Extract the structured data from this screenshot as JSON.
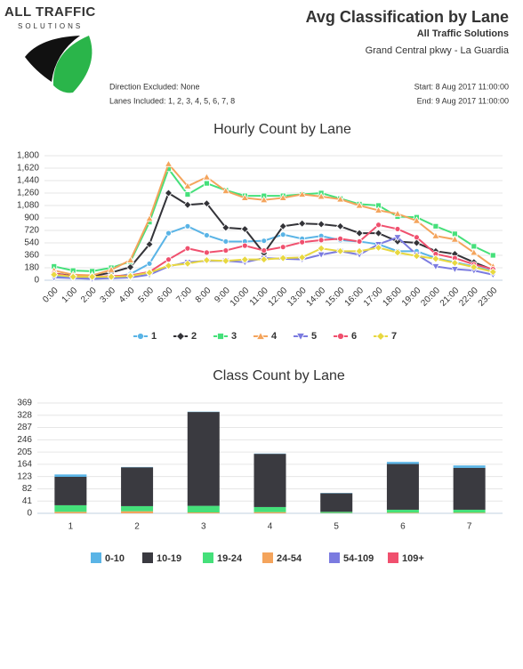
{
  "header": {
    "logo_line1": "ALL TRAFFIC",
    "logo_line2": "SOLUTIONS",
    "title": "Avg Classification by Lane",
    "company": "All Traffic Solutions",
    "location": "Grand Central pkwy - La Guardia",
    "direction": "Direction Excluded: None",
    "lanes": "Lanes Included: 1, 2, 3, 4, 5, 6, 7, 8",
    "start": "Start: 8 Aug 2017 11:00:00",
    "end": "End: 9 Aug 2017 11:00:00"
  },
  "chart_data": [
    {
      "type": "line",
      "title": "Hourly Count by Lane",
      "grid": true,
      "legend": "bottom",
      "categories": [
        "0:00",
        "1:00",
        "2:00",
        "3:00",
        "4:00",
        "5:00",
        "6:00",
        "7:00",
        "8:00",
        "9:00",
        "10:00",
        "11:00",
        "12:00",
        "13:00",
        "14:00",
        "15:00",
        "16:00",
        "17:00",
        "18:00",
        "19:00",
        "20:00",
        "21:00",
        "22:00",
        "23:00"
      ],
      "ylim": [
        0,
        1800
      ],
      "yticks": [
        0,
        180,
        360,
        540,
        720,
        900,
        {
          "value": 1080,
          "label": "1,080"
        },
        {
          "value": 1260,
          "label": "1,260"
        },
        {
          "value": 1440,
          "label": "1,440"
        },
        {
          "value": 1620,
          "label": "1,620"
        },
        {
          "value": 1800,
          "label": "1,800"
        }
      ],
      "series": [
        {
          "name": "1",
          "color": "#5ab4e6",
          "marker": "circle",
          "values": [
            60,
            40,
            30,
            40,
            90,
            240,
            680,
            780,
            650,
            560,
            560,
            570,
            660,
            600,
            640,
            580,
            560,
            520,
            420,
            420,
            320,
            260,
            200,
            130
          ]
        },
        {
          "name": "2",
          "color": "#333338",
          "marker": "diamond",
          "values": [
            100,
            60,
            60,
            110,
            190,
            520,
            1260,
            1090,
            1110,
            760,
            740,
            390,
            780,
            820,
            810,
            780,
            680,
            680,
            560,
            540,
            420,
            380,
            260,
            150
          ]
        },
        {
          "name": "3",
          "color": "#45e07a",
          "marker": "square",
          "values": [
            200,
            140,
            130,
            180,
            270,
            840,
            1610,
            1240,
            1400,
            1300,
            1220,
            1220,
            1220,
            1240,
            1260,
            1180,
            1100,
            1080,
            920,
            910,
            780,
            670,
            490,
            360
          ]
        },
        {
          "name": "4",
          "color": "#f4a45c",
          "marker": "triangle",
          "values": [
            140,
            80,
            70,
            150,
            290,
            890,
            1680,
            1360,
            1490,
            1290,
            1190,
            1160,
            1190,
            1240,
            1210,
            1170,
            1080,
            1010,
            960,
            860,
            640,
            590,
            400,
            200
          ]
        },
        {
          "name": "5",
          "color": "#7b7be0",
          "marker": "triangle-down",
          "values": [
            40,
            30,
            20,
            30,
            40,
            80,
            200,
            260,
            280,
            280,
            260,
            320,
            310,
            300,
            370,
            420,
            370,
            520,
            620,
            370,
            200,
            160,
            140,
            80
          ]
        },
        {
          "name": "6",
          "color": "#f0506e",
          "marker": "circle",
          "values": [
            100,
            50,
            50,
            60,
            70,
            120,
            300,
            460,
            400,
            430,
            500,
            430,
            480,
            550,
            580,
            600,
            560,
            800,
            740,
            620,
            380,
            320,
            230,
            160
          ]
        },
        {
          "name": "7",
          "color": "#e8d840",
          "marker": "diamond",
          "values": [
            80,
            50,
            50,
            50,
            60,
            110,
            210,
            240,
            290,
            280,
            300,
            300,
            320,
            330,
            460,
            420,
            420,
            470,
            400,
            350,
            310,
            250,
            190,
            120
          ]
        }
      ]
    },
    {
      "type": "stacked-bar",
      "title": "Class Count by Lane",
      "grid": true,
      "legend": "bottom",
      "categories": [
        "1",
        "2",
        "3",
        "4",
        "5",
        "6",
        "7"
      ],
      "ylim": [
        0,
        369
      ],
      "yticks": [
        0,
        41,
        82,
        123,
        164,
        205,
        246,
        287,
        328,
        369
      ],
      "series": [
        {
          "name": "0-10",
          "color": "#5ab4e6",
          "values": [
            8,
            1,
            1,
            1,
            1,
            7,
            8
          ]
        },
        {
          "name": "10-19",
          "color": "#3a3a40",
          "values": [
            95,
            130,
            314,
            178,
            62,
            153,
            140
          ]
        },
        {
          "name": "19-24",
          "color": "#45e07a",
          "values": [
            22,
            17,
            22,
            17,
            4,
            10,
            10
          ]
        },
        {
          "name": "24-54",
          "color": "#f4a45c",
          "values": [
            5,
            7,
            3,
            4,
            1,
            2,
            2
          ]
        },
        {
          "name": "54-109",
          "color": "#7b7be0",
          "values": [
            0,
            0,
            0,
            0,
            0,
            0,
            0
          ]
        },
        {
          "name": "109+",
          "color": "#f0506e",
          "values": [
            0,
            0,
            0,
            0,
            0,
            0,
            0
          ]
        }
      ]
    }
  ]
}
